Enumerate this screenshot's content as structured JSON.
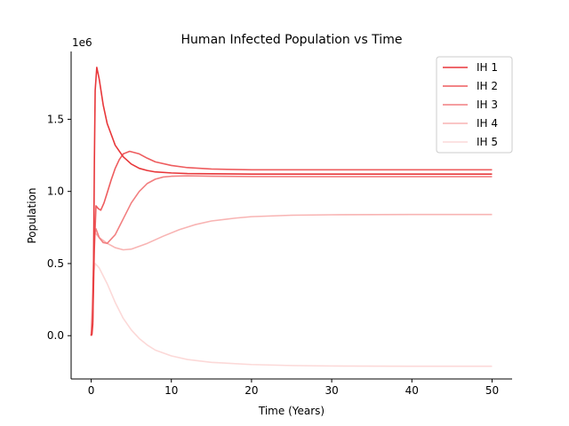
{
  "chart_data": {
    "type": "line",
    "title": "Human Infected Population vs Time",
    "xlabel": "Time (Years)",
    "ylabel": "Population",
    "y_multiplier_label": "1e6",
    "xlim": [
      -2.5,
      52.5
    ],
    "ylim": [
      -300000.0,
      1970000.0
    ],
    "x_ticks": [
      0,
      10,
      20,
      30,
      40,
      50
    ],
    "x_tick_labels": [
      "0",
      "10",
      "20",
      "30",
      "40",
      "50"
    ],
    "y_ticks": [
      0,
      500000,
      1000000,
      1500000
    ],
    "y_tick_labels": [
      "0.0",
      "0.5",
      "1.0",
      "1.5"
    ],
    "grid": false,
    "legend": "top-right",
    "series": [
      {
        "name": "IH 1",
        "color": "#e8373a",
        "x": [
          0,
          0.1,
          0.2,
          0.3,
          0.4,
          0.5,
          0.7,
          1,
          1.5,
          2,
          3,
          4,
          5,
          6,
          7,
          8,
          10,
          12,
          15,
          20,
          30,
          40,
          50
        ],
        "y": [
          0,
          10000,
          80000,
          500000,
          1200000,
          1700000,
          1860000,
          1780000,
          1600000,
          1470000,
          1320000,
          1240000,
          1190000,
          1160000,
          1145000,
          1135000,
          1128000,
          1124000,
          1122000,
          1120000,
          1120000,
          1120000,
          1120000
        ]
      },
      {
        "name": "IH 2",
        "color": "#ee5c5e",
        "x": [
          0,
          0.2,
          0.4,
          0.6,
          0.9,
          1.2,
          1.6,
          2,
          2.5,
          3,
          3.5,
          4,
          4.8,
          6,
          7,
          8,
          10,
          12,
          15,
          20,
          30,
          40,
          50
        ],
        "y": [
          0,
          100000,
          600000,
          900000,
          880000,
          870000,
          920000,
          990000,
          1080000,
          1160000,
          1220000,
          1260000,
          1278000,
          1260000,
          1230000,
          1205000,
          1180000,
          1165000,
          1155000,
          1150000,
          1150000,
          1150000,
          1150000
        ]
      },
      {
        "name": "IH 3",
        "color": "#f27f80",
        "x": [
          0,
          0.2,
          0.4,
          0.6,
          1,
          1.5,
          2,
          3,
          4,
          5,
          6,
          7,
          8,
          9,
          10,
          12,
          15,
          20,
          30,
          40,
          50
        ],
        "y": [
          0,
          200000,
          700000,
          740000,
          680000,
          645000,
          640000,
          700000,
          810000,
          920000,
          1000000,
          1055000,
          1085000,
          1100000,
          1105000,
          1108000,
          1105000,
          1103000,
          1102000,
          1102000,
          1102000
        ]
      },
      {
        "name": "IH 4",
        "color": "#f8b4b3",
        "x": [
          0,
          0.2,
          0.4,
          1,
          2,
          3,
          4,
          5,
          7,
          9,
          11,
          13,
          15,
          18,
          20,
          25,
          30,
          40,
          50
        ],
        "y": [
          0,
          300000,
          720000,
          680000,
          640000,
          610000,
          595000,
          600000,
          640000,
          690000,
          735000,
          770000,
          795000,
          815000,
          825000,
          835000,
          838000,
          840000,
          840000
        ]
      },
      {
        "name": "IH 5",
        "color": "#fcd9d8",
        "x": [
          0,
          0.2,
          0.5,
          1,
          2,
          3,
          4,
          5,
          6,
          7,
          8,
          10,
          12,
          15,
          20,
          25,
          30,
          40,
          50
        ],
        "y": [
          0,
          400000,
          500000,
          470000,
          360000,
          230000,
          120000,
          40000,
          -20000,
          -65000,
          -100000,
          -140000,
          -165000,
          -185000,
          -200000,
          -207000,
          -210000,
          -212000,
          -212000
        ]
      }
    ]
  }
}
